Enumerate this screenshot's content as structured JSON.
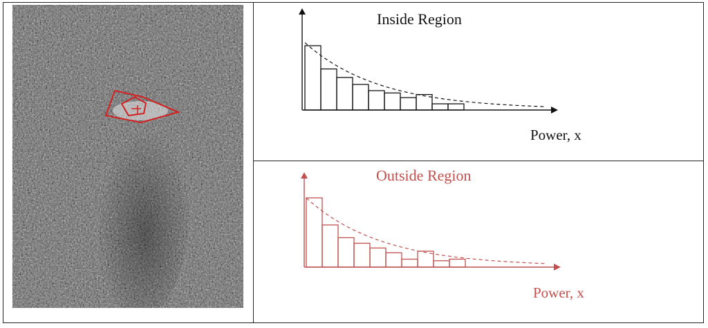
{
  "top_chart": {
    "title": "Inside Region",
    "xlabel": "Power, x",
    "color": "#111111",
    "bars": [
      0.83,
      0.53,
      0.42,
      0.33,
      0.25,
      0.22,
      0.16,
      0.2,
      0.08,
      0.08
    ],
    "curve_color": "#111111"
  },
  "bottom_chart": {
    "title": "Outside Region",
    "xlabel": "Power, x",
    "color": "#c0504d",
    "bars": [
      0.87,
      0.53,
      0.37,
      0.3,
      0.24,
      0.18,
      0.1,
      0.2,
      0.08,
      0.1
    ],
    "curve_color": "#c0504d"
  },
  "image": {
    "description_icon": "speckle-noise-image",
    "contour_color": "#d42020"
  }
}
